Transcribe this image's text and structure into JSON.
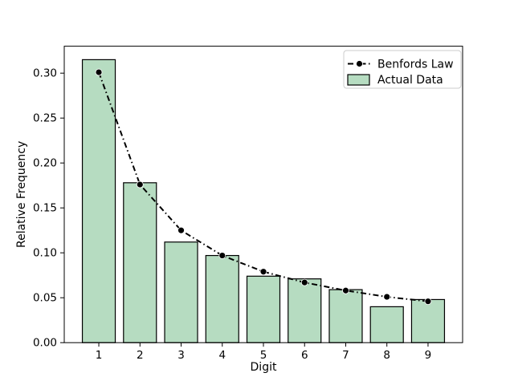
{
  "chart_data": {
    "type": "bar",
    "title": "",
    "xlabel": "Digit",
    "ylabel": "Relative Frequency",
    "categories": [
      1,
      2,
      3,
      4,
      5,
      6,
      7,
      8,
      9
    ],
    "series": [
      {
        "name": "Benfords Law",
        "type": "line",
        "linestyle": "dashdot",
        "marker": "circle",
        "color": "#000000",
        "values": [
          0.301,
          0.176,
          0.125,
          0.097,
          0.079,
          0.067,
          0.058,
          0.051,
          0.046
        ]
      },
      {
        "name": "Actual Data",
        "type": "bar",
        "color": "#b6dcc1",
        "edge_color": "#000000",
        "values": [
          0.315,
          0.178,
          0.112,
          0.097,
          0.074,
          0.071,
          0.059,
          0.04,
          0.048
        ]
      }
    ],
    "bar_width": 0.8,
    "xlim": [
      0.16,
      9.84
    ],
    "ylim": [
      0,
      0.33
    ],
    "xticks": [
      "1",
      "2",
      "3",
      "4",
      "5",
      "6",
      "7",
      "8",
      "9"
    ],
    "yticks": [
      "0.00",
      "0.05",
      "0.10",
      "0.15",
      "0.20",
      "0.25",
      "0.30"
    ],
    "grid": false,
    "legend_position": "upper right"
  }
}
